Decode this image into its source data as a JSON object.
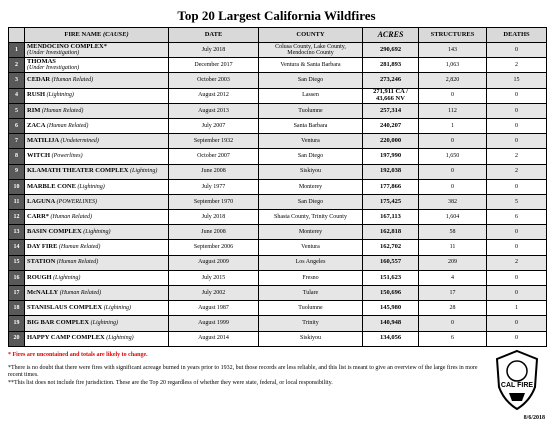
{
  "title": "Top 20 Largest California Wildfires",
  "table": {
    "header": {
      "name": "FIRE NAME",
      "cause": "(CAUSE)",
      "columns": [
        "DATE",
        "COUNTY",
        "ACRES",
        "STRUCTURES",
        "DEATHS"
      ]
    },
    "rows": [
      {
        "number": 1,
        "name": "MENDOCINO COMPLEX*",
        "cause": "(Under Investigation)",
        "date": "July 2018",
        "county": "Colusa County, Lake County, Mendocino County",
        "acres": "290,692",
        "structures": 143,
        "deaths": 0
      },
      {
        "number": 2,
        "name": "THOMAS",
        "cause": "(Under Investigation)",
        "date": "December 2017",
        "county": "Ventura & Santa Barbara",
        "acres": "281,893",
        "structures": "1,063",
        "deaths": 2
      },
      {
        "number": 3,
        "name": "CEDAR",
        "cause": "(Human Related)",
        "date": "October 2003",
        "county": "San Diego",
        "acres": "273,246",
        "structures": "2,820",
        "deaths": 15
      },
      {
        "number": 4,
        "name": "RUSH",
        "cause": "(Lightning)",
        "date": "August 2012",
        "county": "Lassen",
        "acres": "271,911 CA / 43,666 NV",
        "structures": 0,
        "deaths": 0
      },
      {
        "number": 5,
        "name": "RIM",
        "cause": "(Human Related)",
        "date": "August 2013",
        "county": "Tuolumne",
        "acres": "257,314",
        "structures": 112,
        "deaths": 0
      },
      {
        "number": 6,
        "name": "ZACA",
        "cause": "(Human Related)",
        "date": "July 2007",
        "county": "Santa Barbara",
        "acres": "240,207",
        "structures": 1,
        "deaths": 0
      },
      {
        "number": 7,
        "name": "MATILIJA",
        "cause": "(Undetermined)",
        "date": "September 1932",
        "county": "Ventura",
        "acres": "220,000",
        "structures": 0,
        "deaths": 0
      },
      {
        "number": 8,
        "name": "WITCH",
        "cause": "(Powerlines)",
        "date": "October 2007",
        "county": "San Diego",
        "acres": "197,990",
        "structures": "1,650",
        "deaths": 2
      },
      {
        "number": 9,
        "name": "KLAMATH THEATER COMPLEX",
        "cause": "(Lightning)",
        "date": "June 2008",
        "county": "Siskiyou",
        "acres": "192,038",
        "structures": 0,
        "deaths": 2
      },
      {
        "number": 10,
        "name": "MARBLE CONE",
        "cause": "(Lightning)",
        "date": "July 1977",
        "county": "Monterey",
        "acres": "177,866",
        "structures": 0,
        "deaths": 0
      },
      {
        "number": 11,
        "name": "LAGUNA",
        "cause": "(POWERLINES)",
        "date": "September 1970",
        "county": "San Diego",
        "acres": "175,425",
        "structures": 382,
        "deaths": 5
      },
      {
        "number": 12,
        "name": "CARR*",
        "cause": "(Human Related)",
        "date": "July 2018",
        "county": "Shasta County, Trinity County",
        "acres": "167,113",
        "structures": "1,604",
        "deaths": 6
      },
      {
        "number": 13,
        "name": "BASIN COMPLEX",
        "cause": "(Lightning)",
        "date": "June 2008",
        "county": "Monterey",
        "acres": "162,818",
        "structures": 58,
        "deaths": 0
      },
      {
        "number": 14,
        "name": "DAY FIRE",
        "cause": "(Human Related)",
        "date": "September 2006",
        "county": "Ventura",
        "acres": "162,702",
        "structures": 11,
        "deaths": 0
      },
      {
        "number": 15,
        "name": "STATION",
        "cause": "(Human Related)",
        "date": "August 2009",
        "county": "Los Angeles",
        "acres": "160,557",
        "structures": 209,
        "deaths": 2
      },
      {
        "number": 16,
        "name": "ROUGH",
        "cause": "(Lightning)",
        "date": "July 2015",
        "county": "Fresno",
        "acres": "151,623",
        "structures": 4,
        "deaths": 0
      },
      {
        "number": 17,
        "name": "McNALLY",
        "cause": "(Human Related)",
        "date": "July 2002",
        "county": "Tulare",
        "acres": "150,696",
        "structures": 17,
        "deaths": 0
      },
      {
        "number": 18,
        "name": "STANISLAUS COMPLEX",
        "cause": "(Lightning)",
        "date": "August 1987",
        "county": "Tuolumne",
        "acres": "145,980",
        "structures": 28,
        "deaths": 1
      },
      {
        "number": 19,
        "name": "BIG BAR COMPLEX",
        "cause": "(Lightning)",
        "date": "August 1999",
        "county": "Trinity",
        "acres": "140,948",
        "structures": 0,
        "deaths": 0
      },
      {
        "number": 20,
        "name": "HAPPY CAMP COMPLEX",
        "cause": "(Lightning)",
        "date": "August 2014",
        "county": "Siskiyou",
        "acres": "134,056",
        "structures": 6,
        "deaths": 0
      }
    ]
  },
  "footnotes": [
    "* Fires are uncontained and totals are likely to change.",
    "*There is no doubt that there were fires with significant acreage burned in years prior to 1932, but those records are less reliable, and this list is meant to give an overview of the large fires in more recent times.",
    "**This list does not include fire jurisdiction.  These are the Top 20 regardless of whether they were state, federal, or local responsibility."
  ],
  "logo_text": "CAL FIRE",
  "report_date": "8/6/2018"
}
